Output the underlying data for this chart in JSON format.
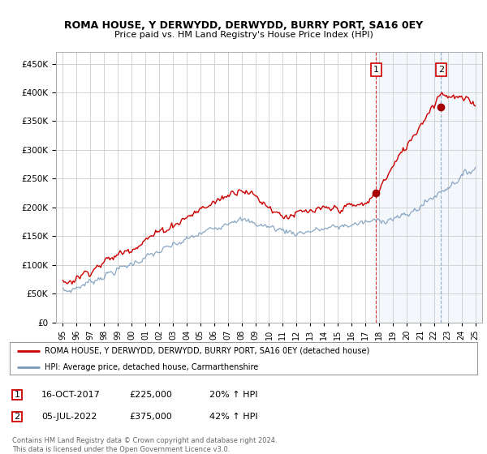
{
  "title": "ROMA HOUSE, Y DERWYDD, DERWYDD, BURRY PORT, SA16 0EY",
  "subtitle": "Price paid vs. HM Land Registry's House Price Index (HPI)",
  "background_color": "#ffffff",
  "plot_bg_color": "#ffffff",
  "grid_color": "#cccccc",
  "red_line_color": "#cc0000",
  "blue_line_color": "#7799bb",
  "highlight_bg_color": "#ddeeff",
  "sale1_x": 2017.79,
  "sale1_y": 225000,
  "sale1_label": "1",
  "sale1_date": "16-OCT-2017",
  "sale1_price": "£225,000",
  "sale1_hpi": "20% ↑ HPI",
  "sale2_x": 2022.5,
  "sale2_y": 375000,
  "sale2_label": "2",
  "sale2_date": "05-JUL-2022",
  "sale2_price": "£375,000",
  "sale2_hpi": "42% ↑ HPI",
  "legend_label1": "ROMA HOUSE, Y DERWYDD, DERWYDD, BURRY PORT, SA16 0EY (detached house)",
  "legend_label2": "HPI: Average price, detached house, Carmarthenshire",
  "footer": "Contains HM Land Registry data © Crown copyright and database right 2024.\nThis data is licensed under the Open Government Licence v3.0.",
  "xlim": [
    1994.5,
    2025.5
  ],
  "ylim": [
    0,
    470000
  ],
  "yticks": [
    0,
    50000,
    100000,
    150000,
    200000,
    250000,
    300000,
    350000,
    400000,
    450000
  ],
  "xtick_years": [
    1995,
    1996,
    1997,
    1998,
    1999,
    2000,
    2001,
    2002,
    2003,
    2004,
    2005,
    2006,
    2007,
    2008,
    2009,
    2010,
    2011,
    2012,
    2013,
    2014,
    2015,
    2016,
    2017,
    2018,
    2019,
    2020,
    2021,
    2022,
    2023,
    2024,
    2025
  ]
}
